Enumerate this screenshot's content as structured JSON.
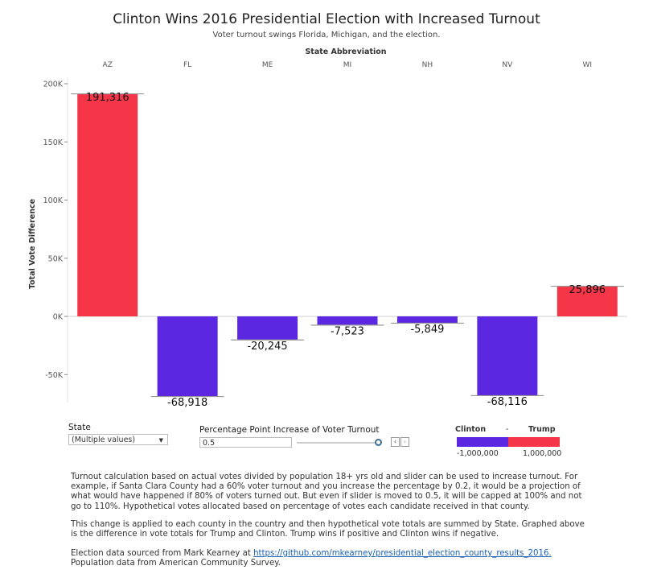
{
  "chart_data": {
    "type": "bar",
    "title": "Clinton Wins 2016 Presidential Election with Increased Turnout",
    "subtitle": "Voter turnout swings Florida, Michigan, and the election.",
    "xlabel": "State Abbreviation",
    "ylabel": "Total Vote Difference",
    "categories": [
      "AZ",
      "FL",
      "ME",
      "MI",
      "NH",
      "NV",
      "WI"
    ],
    "values": [
      191316,
      -68918,
      -20245,
      -7523,
      -5849,
      -68116,
      25896
    ],
    "data_labels": [
      "191,316",
      "-68,918",
      "-20,245",
      "-7,523",
      "-5,849",
      "-68,116",
      "25,896"
    ],
    "ylim": [
      -70000,
      200000
    ],
    "yticks": [
      200000,
      150000,
      100000,
      50000,
      0,
      -50000
    ],
    "ytick_labels": [
      "200K",
      "150K",
      "100K",
      "50K",
      "0K",
      "-50K"
    ],
    "x_axis_position": "top",
    "grid": false,
    "colors": {
      "positive": "#f53648",
      "negative": "#5b27e0"
    }
  },
  "controls": {
    "state_label": "State",
    "state_value": "(Multiple values)",
    "turnout_label": "Percentage Point Increase of Voter Turnout",
    "turnout_value": "0.5",
    "slider_fraction": 1.0,
    "step_prev": "‹",
    "step_next": "›"
  },
  "legend": {
    "left_label": "Clinton",
    "separator": "-",
    "right_label": "Trump",
    "min_label": "-1,000,000",
    "max_label": "1,000,000",
    "negative_color": "#5b27e0",
    "positive_color": "#f53648"
  },
  "notes": {
    "p1": "Turnout calculation based on actual votes divided by population 18+ yrs old and slider can be used to increase turnout. For example, if Santa Clara County had a 60% voter turnout and you increase the percentage by 0.2, it would be a projection of what would have happened if 80% of voters turned out. But even if slider is moved to 0.5, it will be capped at 100% and not go to 110%. Hypothetical votes allocated based on percentage of votes each candidate received in that county.",
    "p2": "This change is applied to each county in the country and then hypothetical vote totals are summed by State. Graphed above is the difference in vote totals for Trump and Clinton. Trump wins if positive and Clinton wins if negative.",
    "p3_before": "Election data sourced from Mark Kearney at ",
    "p3_link": "https://github.com/mkearney/presidential_election_county_results_2016.",
    "p3_after": " Population data from American Community Survey."
  }
}
